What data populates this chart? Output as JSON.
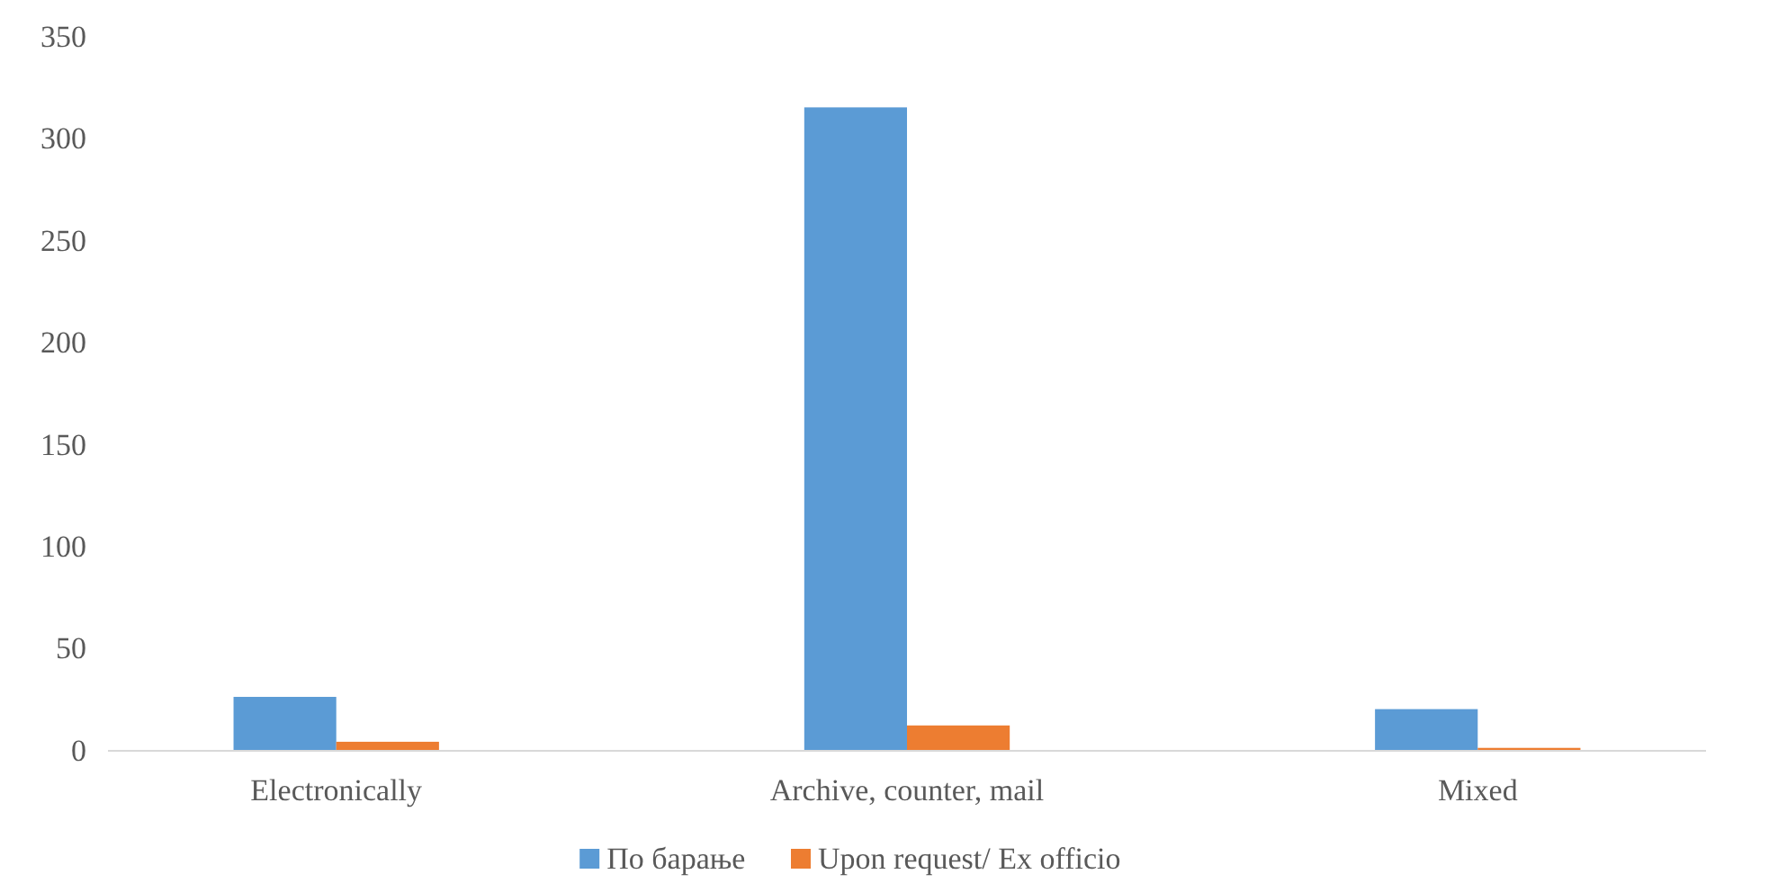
{
  "chart_data": {
    "type": "bar",
    "categories": [
      "Electronically",
      "Archive, counter, mail",
      "Mixed"
    ],
    "series": [
      {
        "name": "По барање",
        "color": "#5b9bd5",
        "values": [
          26,
          315,
          20
        ]
      },
      {
        "name": "Upon request/ Ex officio",
        "color": "#ed7d31",
        "values": [
          4,
          12,
          1
        ]
      }
    ],
    "ylim": [
      0,
      350
    ],
    "yticks": [
      0,
      50,
      100,
      150,
      200,
      250,
      300,
      350
    ],
    "grid": false,
    "legend": "bottom"
  }
}
